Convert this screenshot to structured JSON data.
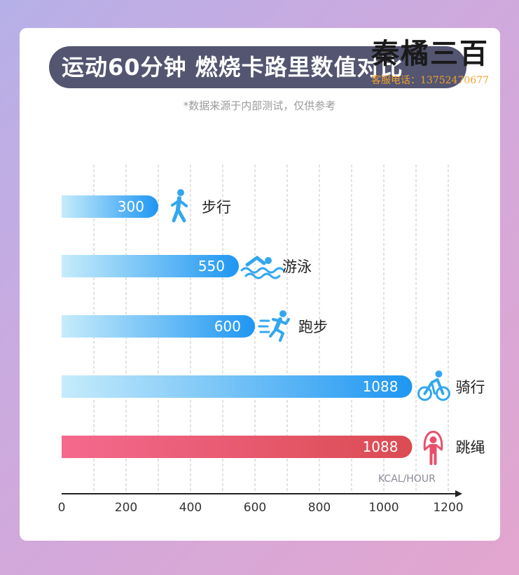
{
  "header": {
    "title": "运动60分钟 燃烧卡路里数值对比",
    "subtitle": "*数据来源于内部测试，仅供参考"
  },
  "watermark": {
    "brand": "秦橘三百",
    "phone": "客服电话：13752470677"
  },
  "chart_data": {
    "type": "bar",
    "orientation": "horizontal",
    "title": "运动60分钟 燃烧卡路里数值对比",
    "unit": "KCAL/HOUR",
    "categories": [
      "步行",
      "游泳",
      "跑步",
      "骑行",
      "跳绳"
    ],
    "values": [
      300,
      550,
      600,
      1088,
      1088
    ],
    "data_labels": [
      "300",
      "550",
      "600",
      "1088",
      "1088"
    ],
    "icons": [
      "walking-icon",
      "swimming-icon",
      "running-icon",
      "cycling-icon",
      "jump-rope-icon"
    ],
    "xlim": [
      0,
      1200
    ],
    "x_ticks": [
      0,
      200,
      400,
      600,
      800,
      1000,
      1200
    ],
    "grid": true,
    "colors": {
      "normal_start": "#c6ecfb",
      "normal_end": "#1e96f2",
      "highlight_start": "#f5698e",
      "highlight_end": "#db4b52",
      "icon_blue": "#33a7ee",
      "icon_red": "#e8506a"
    },
    "highlight_index": 4
  }
}
